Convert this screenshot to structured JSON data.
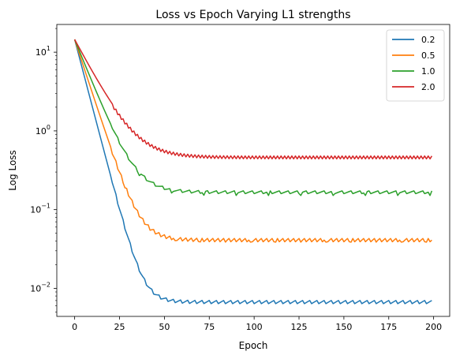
{
  "chart_data": {
    "type": "line",
    "title": "Loss vs Epoch Varying L1 strengths",
    "xlabel": "Epoch",
    "ylabel": "Log Loss",
    "xlim": [
      -9.95,
      208.95
    ],
    "ylim": [
      0.0044,
      22.5
    ],
    "yscale": "log",
    "x_ticks": [
      0,
      25,
      50,
      75,
      100,
      125,
      150,
      175,
      200
    ],
    "y_ticks": [
      {
        "value": 0.01,
        "label": "10",
        "exp": "−2"
      },
      {
        "value": 0.1,
        "label": "10",
        "exp": "−1"
      },
      {
        "value": 1,
        "label": "10",
        "exp": "0"
      },
      {
        "value": 10,
        "label": "10",
        "exp": "1"
      }
    ],
    "grid": false,
    "legend_position": "top-right",
    "series": [
      {
        "name": "0.2",
        "color": "#1f77b4",
        "start": 14.5,
        "floor": 0.0068,
        "decay": 0.2,
        "jitter": 0.06,
        "period": 4,
        "kick": 0,
        "kick_period": 0
      },
      {
        "name": "0.5",
        "color": "#ff7f0e",
        "start": 14.5,
        "floor": 0.042,
        "decay": 0.16,
        "jitter": 0.07,
        "period": 3,
        "kick": 0.08,
        "kick_period": 14
      },
      {
        "name": "1.0",
        "color": "#2ca02c",
        "start": 14.5,
        "floor": 0.168,
        "decay": 0.13,
        "jitter": 0.05,
        "period": 5,
        "kick": 0.1,
        "kick_period": 18
      },
      {
        "name": "2.0",
        "color": "#d62728",
        "start": 14.5,
        "floor": 0.48,
        "decay": 0.1,
        "jitter": 0.08,
        "period": 2,
        "kick": 0,
        "kick_period": 0
      }
    ],
    "epochs": 200
  }
}
